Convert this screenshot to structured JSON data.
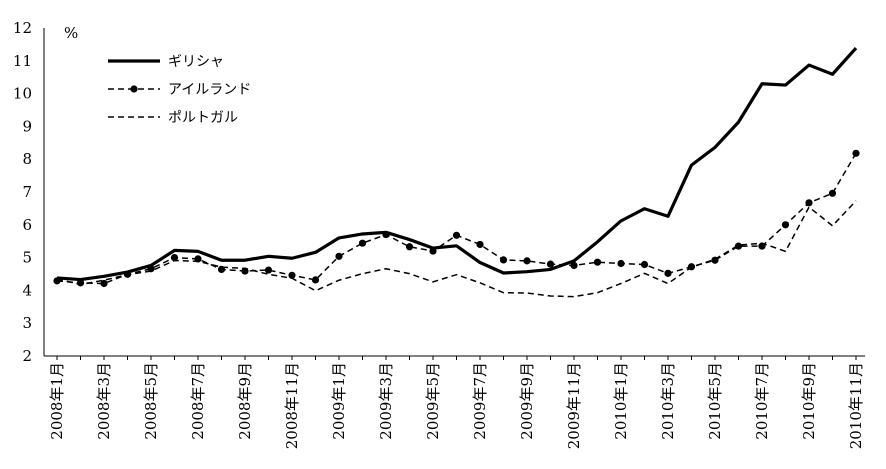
{
  "chart_data": {
    "type": "line",
    "title": "",
    "ylabel": "%",
    "xlabel": "",
    "ylim": [
      2,
      12
    ],
    "yticks": [
      2,
      3,
      4,
      5,
      6,
      7,
      8,
      9,
      10,
      11,
      12
    ],
    "grid": false,
    "legend_position": "top-left",
    "x": [
      "2008年1月",
      "2008年2月",
      "2008年3月",
      "2008年4月",
      "2008年5月",
      "2008年6月",
      "2008年7月",
      "2008年8月",
      "2008年9月",
      "2008年10月",
      "2008年11月",
      "2008年12月",
      "2009年1月",
      "2009年2月",
      "2009年3月",
      "2009年4月",
      "2009年5月",
      "2009年6月",
      "2009年7月",
      "2009年8月",
      "2009年9月",
      "2009年10月",
      "2009年11月",
      "2009年12月",
      "2010年1月",
      "2010年2月",
      "2010年3月",
      "2010年4月",
      "2010年5月",
      "2010年6月",
      "2010年7月",
      "2010年8月",
      "2010年9月",
      "2010年10月",
      "2010年11月"
    ],
    "x_tick_labels": [
      "2008年1月",
      "2008年3月",
      "2008年5月",
      "2008年7月",
      "2008年9月",
      "2008年11月",
      "2009年1月",
      "2009年3月",
      "2009年5月",
      "2009年7月",
      "2009年9月",
      "2009年11月",
      "2010年1月",
      "2010年3月",
      "2010年5月",
      "2010年7月",
      "2010年9月",
      "2010年11月"
    ],
    "series": [
      {
        "name": "ギリシャ",
        "style": "solid-thick",
        "color": "#000000",
        "values": [
          4.38,
          4.33,
          4.43,
          4.56,
          4.76,
          5.22,
          5.19,
          4.92,
          4.92,
          5.04,
          4.98,
          5.16,
          5.6,
          5.72,
          5.77,
          5.55,
          5.29,
          5.36,
          4.85,
          4.53,
          4.57,
          4.64,
          4.9,
          5.48,
          6.12,
          6.49,
          6.26,
          7.82,
          8.36,
          9.13,
          10.3,
          10.26,
          10.87,
          10.59,
          11.39
        ]
      },
      {
        "name": "アイルランド",
        "style": "dashed-markers",
        "color": "#000000",
        "values": [
          4.29,
          4.23,
          4.21,
          4.49,
          4.66,
          5.0,
          4.96,
          4.64,
          4.59,
          4.62,
          4.46,
          4.32,
          5.04,
          5.44,
          5.7,
          5.33,
          5.2,
          5.68,
          5.4,
          4.93,
          4.9,
          4.8,
          4.76,
          4.86,
          4.82,
          4.79,
          4.52,
          4.72,
          4.92,
          5.35,
          5.35,
          6.0,
          6.67,
          6.96,
          8.18
        ]
      },
      {
        "name": "ポルトガル",
        "style": "dashed",
        "color": "#000000",
        "values": [
          4.35,
          4.18,
          4.31,
          4.48,
          4.59,
          4.91,
          4.89,
          4.71,
          4.67,
          4.49,
          4.37,
          3.99,
          4.31,
          4.51,
          4.66,
          4.51,
          4.26,
          4.48,
          4.23,
          3.93,
          3.92,
          3.83,
          3.81,
          3.93,
          4.21,
          4.52,
          4.21,
          4.71,
          4.95,
          5.38,
          5.44,
          5.19,
          6.54,
          5.97,
          6.73
        ]
      }
    ]
  }
}
